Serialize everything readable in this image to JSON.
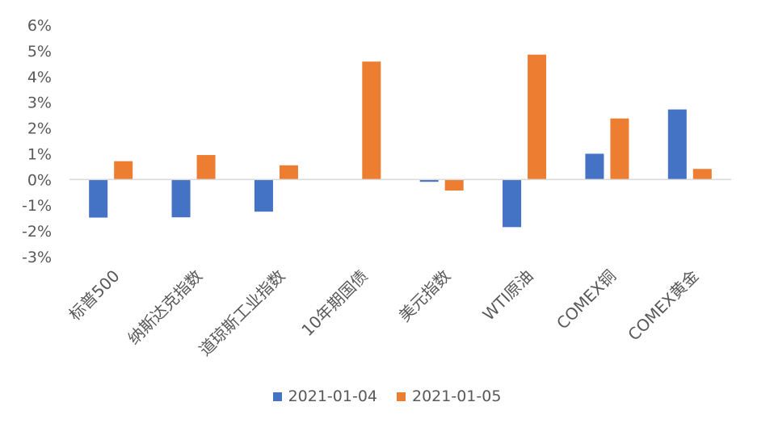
{
  "chart_data": {
    "type": "bar",
    "categories": [
      "标普500",
      "纳斯达克指数",
      "道琼斯工业指数",
      "10年期国债",
      "美元指数",
      "WTI原油",
      "COMEX铜",
      "COMEX黄金"
    ],
    "series": [
      {
        "name": "2021-01-04",
        "color": "#4472C4",
        "values": [
          -1.48,
          -1.47,
          -1.25,
          0.0,
          -0.09,
          -1.85,
          1.0,
          2.72
        ]
      },
      {
        "name": "2021-01-05",
        "color": "#ED7D31",
        "values": [
          0.71,
          0.95,
          0.55,
          4.58,
          -0.43,
          4.85,
          2.37,
          0.41
        ]
      }
    ],
    "ylim": [
      -3,
      6
    ],
    "yticks": [
      "-3%",
      "-2%",
      "-1%",
      "0%",
      "1%",
      "2%",
      "3%",
      "4%",
      "5%",
      "6%"
    ],
    "legend_position": "bottom",
    "grid": false
  }
}
